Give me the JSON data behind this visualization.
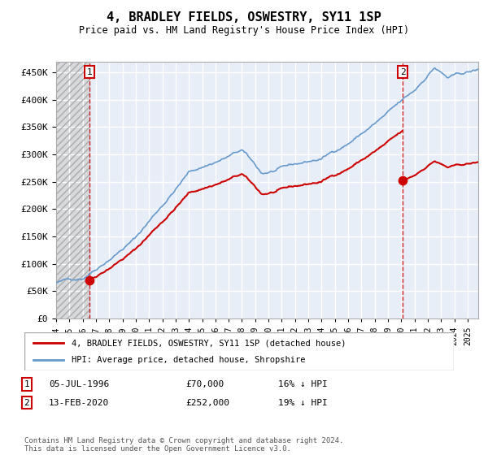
{
  "title": "4, BRADLEY FIELDS, OSWESTRY, SY11 1SP",
  "subtitle": "Price paid vs. HM Land Registry's House Price Index (HPI)",
  "ylim": [
    0,
    470000
  ],
  "yticks": [
    0,
    50000,
    100000,
    150000,
    200000,
    250000,
    300000,
    350000,
    400000,
    450000
  ],
  "xlim_start": 1994.0,
  "xlim_end": 2025.8,
  "background_plot": "#e8eef8",
  "hatch_end_year": 1996.5,
  "grid_color": "#ffffff",
  "sale1": {
    "year": 1996.51,
    "price": 70000,
    "label": "1",
    "date": "05-JUL-1996",
    "price_str": "£70,000",
    "hpi_diff": "16% ↓ HPI"
  },
  "sale2": {
    "year": 2020.12,
    "price": 252000,
    "label": "2",
    "date": "13-FEB-2020",
    "price_str": "£252,000",
    "hpi_diff": "19% ↓ HPI"
  },
  "legend_line1": "4, BRADLEY FIELDS, OSWESTRY, SY11 1SP (detached house)",
  "legend_line2": "HPI: Average price, detached house, Shropshire",
  "footer": "Contains HM Land Registry data © Crown copyright and database right 2024.\nThis data is licensed under the Open Government Licence v3.0.",
  "sale_color": "#cc0000",
  "hpi_color": "#6699cc"
}
